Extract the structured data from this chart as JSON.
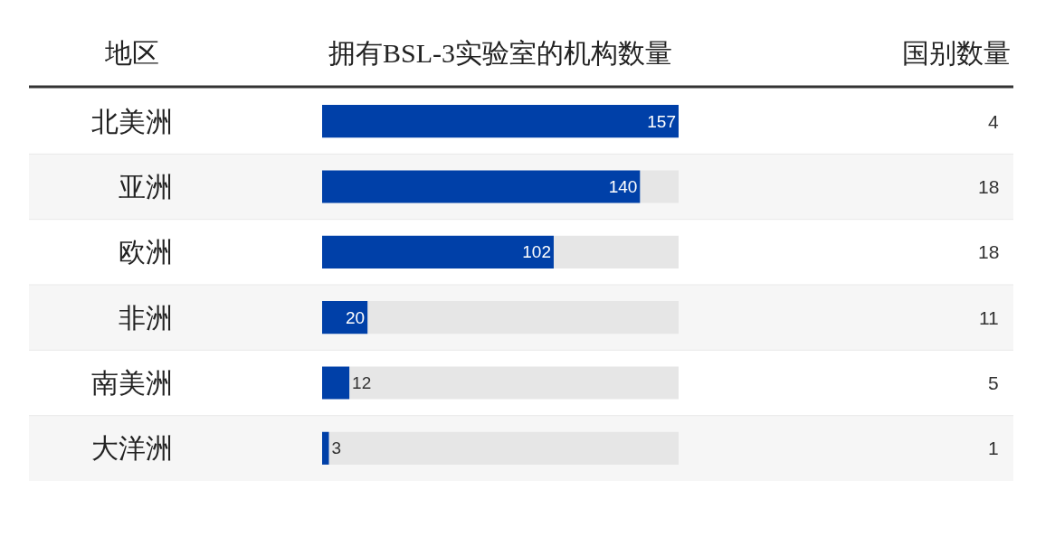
{
  "chart_data": {
    "type": "bar",
    "orientation": "horizontal",
    "stacked": true,
    "ylabel": "地区",
    "xlabel": "拥有BSL-3实验室的机构数量",
    "categories": [
      "北美洲",
      "亚洲",
      "欧洲",
      "非洲",
      "南美洲",
      "大洋洲"
    ],
    "series": [
      {
        "color": "#0040a8",
        "values": [
          157,
          140,
          102,
          20,
          12,
          3
        ],
        "value_labels": [
          "157",
          "140",
          "102",
          "20",
          "12",
          "3"
        ]
      },
      {
        "color": "#e6e6e6",
        "values": [
          0,
          17,
          55,
          137,
          145,
          154
        ]
      }
    ],
    "xlim": [
      0,
      157
    ],
    "tick_labels": "y",
    "annotations": [
      "国别数量",
      "4",
      "18",
      "18",
      "11",
      "5",
      "1"
    ]
  }
}
